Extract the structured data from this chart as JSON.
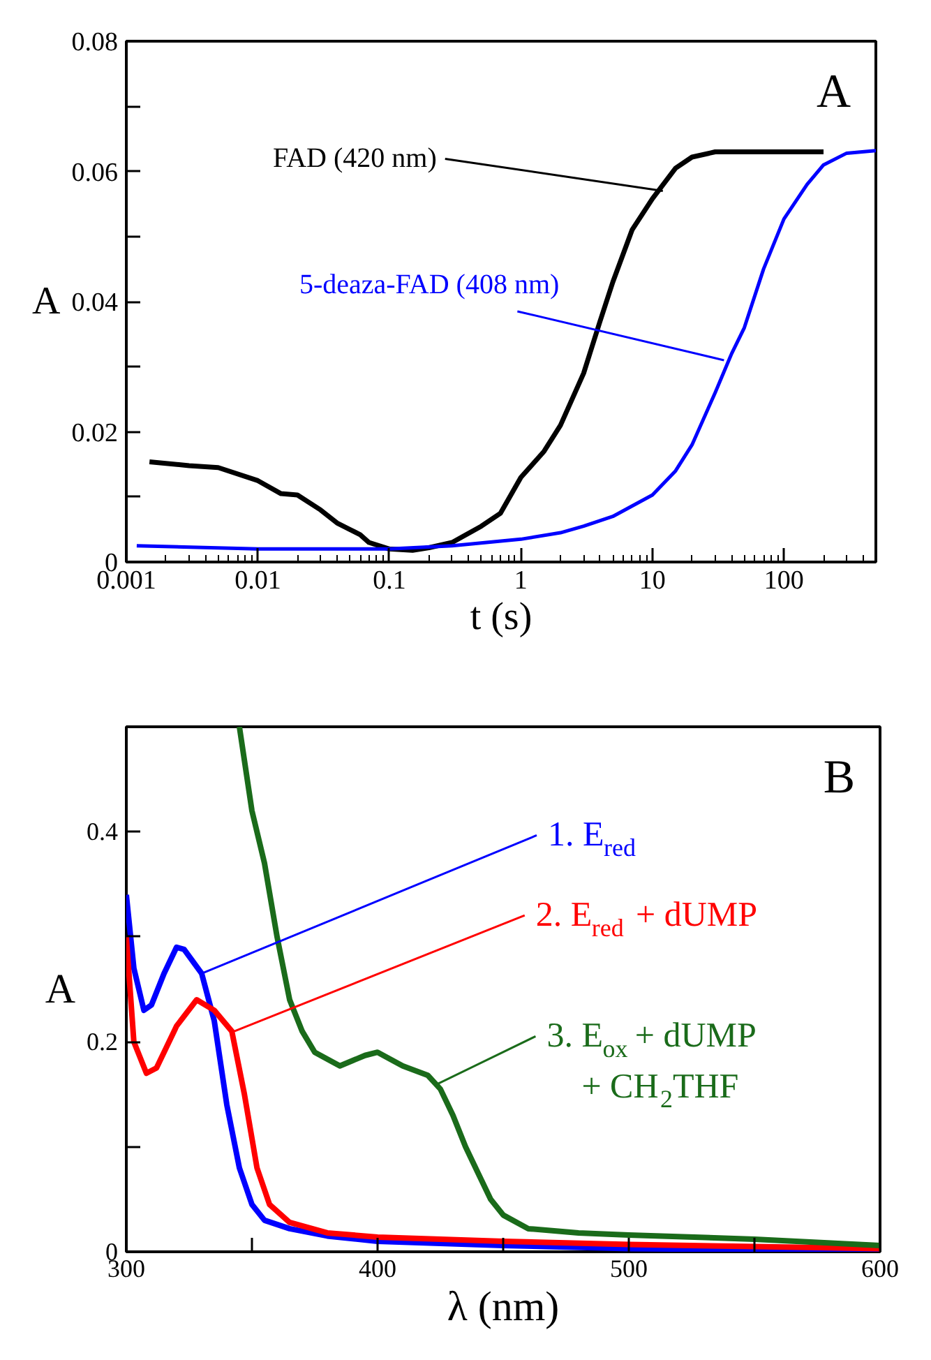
{
  "chart_data": [
    {
      "type": "line",
      "xlabel": "t (s)",
      "ylabel": "A",
      "log": "x",
      "xlim": [
        0.001,
        500
      ],
      "ylim": [
        0,
        0.08
      ],
      "xticks": [
        0.001,
        0.01,
        0.1,
        1,
        10,
        100
      ],
      "yticks": [
        0,
        {
          "value": 0.01,
          "label": null
        },
        0.02,
        {
          "value": 0.03,
          "label": null
        },
        0.04,
        {
          "value": 0.05,
          "label": null
        },
        0.06,
        {
          "value": 0.07,
          "label": null
        },
        0.08
      ],
      "grid": false,
      "series": [
        {
          "color": "#000000",
          "x": [
            0.0015,
            0.003,
            0.005,
            0.01,
            0.015,
            0.02,
            0.03,
            0.04,
            0.05,
            0.06,
            0.07,
            0.1,
            0.15,
            0.2,
            0.3,
            0.5,
            0.7,
            1,
            1.5,
            2,
            3,
            4,
            5,
            7,
            10,
            15,
            20,
            30,
            50,
            100,
            200
          ],
          "values": [
            0.0154,
            0.0148,
            0.0145,
            0.0125,
            0.0105,
            0.0103,
            0.008,
            0.006,
            0.005,
            0.0042,
            0.003,
            0.002,
            0.0018,
            0.0022,
            0.003,
            0.0055,
            0.0075,
            0.013,
            0.017,
            0.021,
            0.029,
            0.037,
            0.043,
            0.051,
            0.0558,
            0.0605,
            0.0622,
            0.063,
            0.063,
            0.063,
            0.063
          ]
        },
        {
          "color": "#0000ff",
          "x": [
            0.0012,
            0.01,
            0.1,
            0.3,
            1,
            2,
            3,
            5,
            10,
            15,
            20,
            30,
            40,
            50,
            70,
            100,
            150,
            200,
            300,
            500
          ],
          "values": [
            0.0025,
            0.002,
            0.002,
            0.0025,
            0.0035,
            0.0045,
            0.0055,
            0.007,
            0.0103,
            0.014,
            0.018,
            0.026,
            0.032,
            0.036,
            0.045,
            0.0527,
            0.058,
            0.061,
            0.0628,
            0.0632
          ]
        }
      ],
      "annotations": [
        "A",
        {
          "text": "FAD (420 nm)",
          "x": 12,
          "y": 0.057
        },
        {
          "text": "5-deaza-FAD (408 nm)",
          "x": 35,
          "y": 0.031
        }
      ]
    },
    {
      "type": "line",
      "xlabel": "λ (nm)",
      "ylabel": "A",
      "xlim": [
        300,
        600
      ],
      "ylim": [
        0,
        0.5
      ],
      "xticks": [
        300,
        {
          "value": 350,
          "label": null
        },
        400,
        {
          "value": 450,
          "label": null
        },
        500,
        {
          "value": 550,
          "label": null
        },
        600
      ],
      "yticks": [
        0,
        {
          "value": 0.1,
          "label": null
        },
        0.2,
        {
          "value": 0.3,
          "label": null
        },
        0.4
      ],
      "grid": false,
      "series": [
        {
          "color": "#0000ff",
          "x": [
            300,
            303,
            307,
            310,
            315,
            320,
            323,
            330,
            335,
            340,
            345,
            350,
            355,
            365,
            380,
            400,
            450,
            500,
            550,
            600
          ],
          "values": [
            0.34,
            0.27,
            0.23,
            0.235,
            0.265,
            0.29,
            0.288,
            0.265,
            0.22,
            0.14,
            0.08,
            0.045,
            0.03,
            0.022,
            0.015,
            0.01,
            0.006,
            0.003,
            0.002,
            0.001
          ]
        },
        {
          "color": "#ff0000",
          "x": [
            300,
            303,
            308,
            312,
            320,
            328,
            335,
            342,
            347,
            352,
            357,
            365,
            380,
            400,
            450,
            500,
            550,
            600
          ],
          "values": [
            0.3,
            0.2,
            0.17,
            0.175,
            0.215,
            0.24,
            0.23,
            0.21,
            0.15,
            0.08,
            0.045,
            0.028,
            0.018,
            0.014,
            0.01,
            0.007,
            0.005,
            0.003
          ]
        },
        {
          "color": "#1a6b1a",
          "x": [
            345,
            350,
            355,
            360,
            365,
            370,
            375,
            385,
            395,
            400,
            410,
            420,
            425,
            430,
            435,
            440,
            445,
            450,
            460,
            480,
            500,
            550,
            600
          ],
          "values": [
            0.5,
            0.42,
            0.37,
            0.3,
            0.24,
            0.21,
            0.19,
            0.177,
            0.187,
            0.19,
            0.177,
            0.168,
            0.155,
            0.13,
            0.1,
            0.075,
            0.05,
            0.035,
            0.022,
            0.018,
            0.016,
            0.012,
            0.006
          ]
        }
      ],
      "annotations": [
        "B",
        {
          "text": "1. E$_{red}$",
          "x": 330,
          "y": 0.265
        },
        {
          "text": "2. E$_{red}$ + dUMP",
          "x": 343,
          "y": 0.21
        },
        {
          "text": "3. E$_{ox}$ + dUMP\n+ CH$_{2}$THF",
          "x": 424,
          "y": 0.16
        }
      ]
    }
  ]
}
